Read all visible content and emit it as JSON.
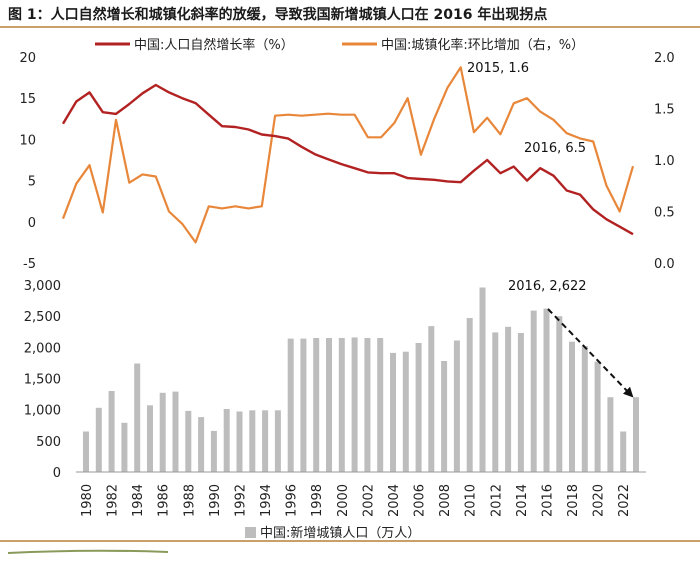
{
  "title": "图 1：人口自然增长和城镇化斜率的放缓，导致我国新增城镇人口在 2016 年出现拐点",
  "colors": {
    "natural_growth": "#b22222",
    "urbanization": "#e8873a",
    "bars": "#bdbdbd",
    "accent": "#c9a06a"
  },
  "chart_data": [
    {
      "type": "line",
      "x": [
        1980,
        1981,
        1982,
        1983,
        1984,
        1985,
        1986,
        1987,
        1988,
        1989,
        1990,
        1991,
        1992,
        1993,
        1994,
        1995,
        1996,
        1997,
        1998,
        1999,
        2000,
        2001,
        2002,
        2003,
        2004,
        2005,
        2006,
        2007,
        2008,
        2009,
        2010,
        2011,
        2012,
        2013,
        2014,
        2015,
        2016,
        2017,
        2018,
        2019,
        2020,
        2021,
        2022,
        2023
      ],
      "series": [
        {
          "name": "中国:人口自然增长率（%）",
          "axis": "left",
          "values": [
            11.9,
            14.6,
            15.7,
            13.3,
            13.1,
            14.3,
            15.6,
            16.6,
            15.7,
            15.0,
            14.4,
            13.0,
            11.6,
            11.5,
            11.2,
            10.6,
            10.4,
            10.1,
            9.1,
            8.2,
            7.6,
            7.0,
            6.5,
            6.0,
            5.9,
            5.9,
            5.3,
            5.2,
            5.1,
            4.9,
            4.8,
            6.2,
            7.5,
            5.9,
            6.7,
            5.0,
            6.5,
            5.6,
            3.8,
            3.3,
            1.5,
            0.3,
            -0.6,
            -1.5
          ]
        },
        {
          "name": "中国:城镇化率:环比增加（右，%）",
          "axis": "right",
          "values": [
            0.43,
            0.77,
            0.95,
            0.49,
            1.39,
            0.78,
            0.86,
            0.84,
            0.5,
            0.38,
            0.2,
            0.55,
            0.53,
            0.55,
            0.53,
            0.55,
            1.43,
            1.44,
            1.43,
            1.44,
            1.45,
            1.44,
            1.44,
            1.22,
            1.22,
            1.36,
            1.6,
            1.05,
            1.4,
            1.7,
            1.9,
            1.27,
            1.41,
            1.25,
            1.55,
            1.6,
            1.47,
            1.39,
            1.26,
            1.21,
            1.18,
            0.75,
            0.5,
            0.94
          ]
        }
      ],
      "ylim_left": [
        -5,
        20
      ],
      "yticks_left": [
        -5,
        0,
        5,
        10,
        15,
        20
      ],
      "ylim_right": [
        0.0,
        2.0
      ],
      "yticks_right": [
        "0.0",
        "0.5",
        "1.0",
        "1.5",
        "2.0"
      ],
      "legend": "top",
      "grid": false,
      "annotations": [
        "2015, 1.6",
        "2016, 6.5"
      ]
    },
    {
      "type": "bar",
      "categories": [
        1980,
        1981,
        1982,
        1983,
        1984,
        1985,
        1986,
        1987,
        1988,
        1989,
        1990,
        1991,
        1992,
        1993,
        1994,
        1995,
        1996,
        1997,
        1998,
        1999,
        2000,
        2001,
        2002,
        2003,
        2004,
        2005,
        2006,
        2007,
        2008,
        2009,
        2010,
        2011,
        2012,
        2013,
        2014,
        2015,
        2016,
        2017,
        2018,
        2019,
        2020,
        2021,
        2022,
        2023
      ],
      "x_tick_labels": [
        "1980",
        "1982",
        "1984",
        "1986",
        "1988",
        "1990",
        "1992",
        "1994",
        "1996",
        "1998",
        "2000",
        "2002",
        "2004",
        "2006",
        "2008",
        "2010",
        "2012",
        "2014",
        "2016",
        "2018",
        "2020",
        "2022"
      ],
      "series": [
        {
          "name": "中国:新增城镇人口（万人）",
          "values": [
            650,
            1030,
            1300,
            790,
            1740,
            1070,
            1270,
            1290,
            980,
            880,
            660,
            1010,
            970,
            990,
            990,
            990,
            2140,
            2140,
            2150,
            2150,
            2150,
            2160,
            2150,
            2150,
            1910,
            1930,
            2070,
            2340,
            1780,
            2110,
            2470,
            2960,
            2240,
            2330,
            2230,
            2590,
            2622,
            2500,
            2090,
            2020,
            1770,
            1200,
            650,
            1200
          ]
        }
      ],
      "ylim": [
        0,
        3000
      ],
      "yticks": [
        "0",
        "500",
        "1,000",
        "1,500",
        "2,000",
        "2,500",
        "3,000"
      ],
      "legend": "bottom",
      "grid": false,
      "annotations": [
        "2016, 2,622"
      ]
    }
  ]
}
